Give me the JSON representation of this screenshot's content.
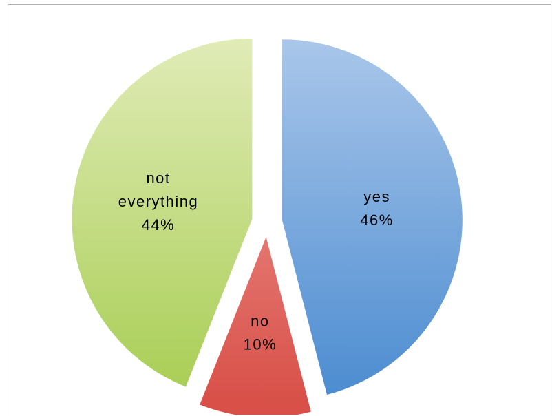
{
  "chart_data": {
    "type": "pie",
    "title": "",
    "legend": "none",
    "exploded": true,
    "slices": [
      {
        "label": "yes",
        "value": 46,
        "percent_label": "46%",
        "color_top": "#a9c6ea",
        "color_bottom": "#4a8bd0"
      },
      {
        "label": "no",
        "value": 10,
        "percent_label": "10%",
        "color_top": "#f2a29f",
        "color_bottom": "#d85048"
      },
      {
        "label": "not everything",
        "value": 44,
        "percent_label": "44%",
        "color_top": "#e0ebb6",
        "color_bottom": "#a7cd52"
      }
    ]
  }
}
